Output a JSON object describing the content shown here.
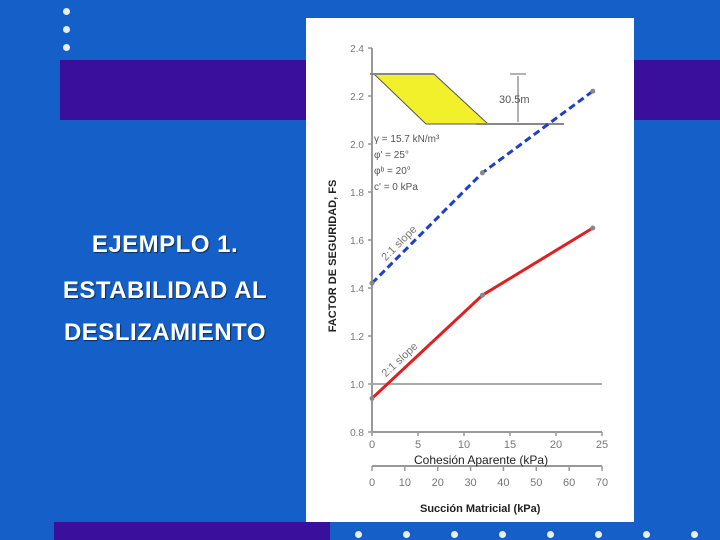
{
  "slide": {
    "title_lines": [
      "EJEMPLO 1.",
      "ESTABILIDAD AL",
      "DESLIZAMIENTO"
    ]
  },
  "colors": {
    "background": "#1560c8",
    "band": "#3a0f9c",
    "series_upper": "#1f3fc4",
    "series_lower": "#e02020",
    "slope_fill": "#f2f02a"
  },
  "chart_data": {
    "type": "line",
    "ylabel": "FACTOR DE SEGURIDAD, FS",
    "xlabel": "Cohesión Aparente (kPa)",
    "xlabel2": "Succión Matricial (kPa)",
    "xlim": [
      0,
      25
    ],
    "ylim": [
      0.8,
      2.4
    ],
    "x_ticks": [
      0,
      5,
      10,
      15,
      20,
      25
    ],
    "y_ticks": [
      0.8,
      1.0,
      1.2,
      1.4,
      1.6,
      1.8,
      2.0,
      2.2,
      2.4
    ],
    "x2_ticks": [
      0,
      10,
      20,
      30,
      40,
      50,
      60,
      70
    ],
    "grid": false,
    "series": [
      {
        "name": "2:1 slope",
        "style": "dashed",
        "x": [
          0,
          12,
          24
        ],
        "y": [
          1.42,
          1.88,
          2.22
        ]
      },
      {
        "name": "2:1 slope",
        "style": "solid",
        "x": [
          0,
          12,
          24
        ],
        "y": [
          0.94,
          1.37,
          1.65
        ]
      }
    ],
    "reference_line": {
      "y": 1.0
    },
    "annotations": {
      "height": "30.5m",
      "params": [
        "γ = 15.7 kN/m³",
        "φ' = 25°",
        "φᵇ = 20°",
        "c' = 0 kPa"
      ]
    }
  }
}
